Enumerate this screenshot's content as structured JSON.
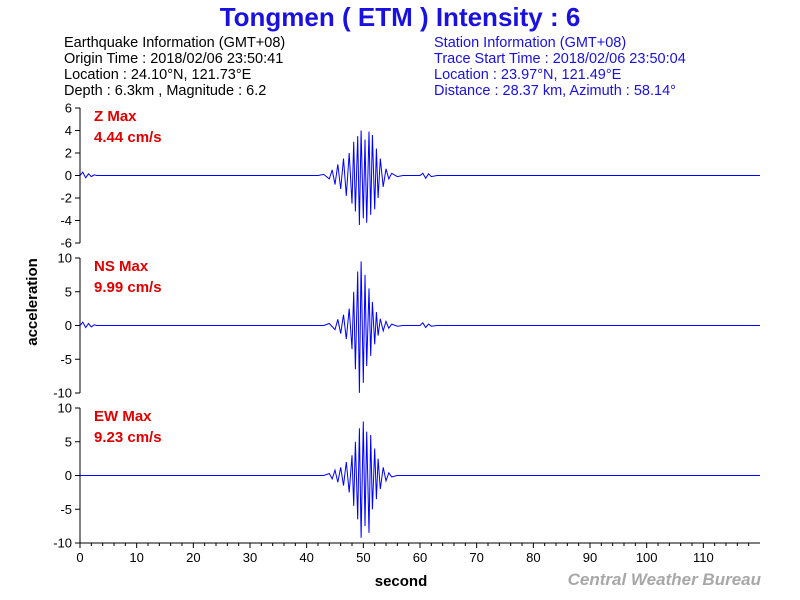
{
  "title": "Tongmen ( ETM ) Intensity : 6",
  "earthquake_info": {
    "heading": "Earthquake Information  (GMT+08)",
    "origin_time": "Origin Time : 2018/02/06 23:50:41",
    "location": "Location : 24.10°N, 121.73°E",
    "depth_magnitude": "Depth : 6.3km , Magnitude : 6.2"
  },
  "station_info": {
    "heading": "Station Information  (GMT+08)",
    "trace_start": "Trace Start Time : 2018/02/06 23:50:04",
    "location": "Location : 23.97°N, 121.49°E",
    "distance_azimuth": "Distance : 28.37 km, Azimuth : 58.14°"
  },
  "credit": "Central Weather Bureau",
  "colors": {
    "title": "#1a10e0",
    "station_text": "#1a10e0",
    "trace": "#0000ff",
    "max_label": "#e00000",
    "credit": "#a8a8a8"
  },
  "chart_data": [
    {
      "type": "line",
      "panel": "Z",
      "max_label": "Z Max",
      "max_value": "4.44 cm/s",
      "xlabel": "second",
      "ylabel": "acceleration",
      "xlim": [
        0,
        120
      ],
      "ylim": [
        -6,
        6
      ],
      "y_ticks": [
        6,
        4,
        2,
        0,
        -2,
        -4,
        -6
      ],
      "x_ticks": [
        0,
        10,
        20,
        30,
        40,
        50,
        60,
        70,
        80,
        90,
        100,
        110
      ],
      "series": [
        {
          "x": [
            0,
            0.5,
            1,
            1.5,
            2,
            2.5,
            3,
            42,
            43,
            44,
            44.5,
            45,
            45.5,
            46,
            46.5,
            47,
            47.5,
            48,
            48.3,
            48.6,
            49,
            49.3,
            49.6,
            50,
            50.3,
            50.6,
            51,
            51.3,
            51.6,
            52,
            52.3,
            52.6,
            53,
            53.5,
            54,
            54.5,
            55,
            56,
            57,
            60,
            60.5,
            61,
            61.5,
            62,
            63,
            120
          ],
          "y": [
            0,
            0.3,
            -0.2,
            0.15,
            -0.1,
            0.05,
            0,
            0,
            0.1,
            -0.3,
            0.5,
            -0.8,
            1.0,
            -1.2,
            1.5,
            -1.8,
            2.0,
            -2.5,
            3.0,
            -3.2,
            3.5,
            -4.4,
            4.0,
            -3.8,
            3.2,
            -4.2,
            3.9,
            -3.5,
            3.6,
            -3.0,
            2.4,
            -2.0,
            1.5,
            -1.0,
            0.6,
            -0.3,
            0.2,
            -0.1,
            0,
            0,
            0.2,
            -0.25,
            0.15,
            -0.1,
            0,
            0
          ]
        }
      ]
    },
    {
      "type": "line",
      "panel": "NS",
      "max_label": "NS Max",
      "max_value": "9.99 cm/s",
      "xlabel": "second",
      "ylabel": "acceleration",
      "xlim": [
        0,
        120
      ],
      "ylim": [
        -10,
        10
      ],
      "y_ticks": [
        10,
        5,
        0,
        -5,
        -10
      ],
      "x_ticks": [
        0,
        10,
        20,
        30,
        40,
        50,
        60,
        70,
        80,
        90,
        100,
        110
      ],
      "series": [
        {
          "x": [
            0,
            0.5,
            1,
            1.5,
            2,
            2.5,
            3,
            43,
            44,
            45,
            45.5,
            46,
            46.5,
            47,
            47.5,
            48,
            48.3,
            48.6,
            49,
            49.3,
            49.6,
            50,
            50.3,
            50.6,
            51,
            51.3,
            51.6,
            52,
            52.3,
            52.6,
            53,
            53.5,
            54,
            54.5,
            55,
            56,
            57,
            60,
            60.5,
            61,
            61.5,
            62,
            63,
            120
          ],
          "y": [
            0,
            0.5,
            -0.3,
            0.3,
            -0.2,
            0.1,
            0,
            0,
            0.3,
            -0.6,
            0.9,
            -1.2,
            1.6,
            -2.0,
            2.5,
            -3.5,
            5.0,
            -6.5,
            8.0,
            -9.99,
            9.5,
            -8.5,
            7.5,
            -6.0,
            5.5,
            -4.5,
            3.5,
            -2.8,
            2.0,
            -1.5,
            1.0,
            -0.8,
            0.6,
            -0.4,
            0.2,
            -0.1,
            0,
            0,
            0.4,
            -0.3,
            0.2,
            -0.1,
            0,
            0
          ]
        }
      ]
    },
    {
      "type": "line",
      "panel": "EW",
      "max_label": "EW Max",
      "max_value": "9.23 cm/s",
      "xlabel": "second",
      "ylabel": "acceleration",
      "xlim": [
        0,
        120
      ],
      "ylim": [
        -10,
        10
      ],
      "y_ticks": [
        10,
        5,
        0,
        -5,
        -10
      ],
      "x_ticks": [
        0,
        10,
        20,
        30,
        40,
        50,
        60,
        70,
        80,
        90,
        100,
        110
      ],
      "series": [
        {
          "x": [
            0,
            43,
            44,
            44.5,
            45,
            45.5,
            46,
            46.5,
            47,
            47.5,
            48,
            48.3,
            48.6,
            49,
            49.3,
            49.6,
            50,
            50.3,
            50.6,
            51,
            51.3,
            51.6,
            52,
            52.3,
            52.6,
            53,
            53.5,
            54,
            54.5,
            55,
            56,
            120
          ],
          "y": [
            0,
            0,
            0.3,
            -0.5,
            0.8,
            -1.0,
            1.2,
            -1.5,
            2.0,
            -2.5,
            3.0,
            -4.5,
            5.0,
            -6.5,
            7.0,
            -9.23,
            8.0,
            -7.5,
            6.5,
            -8.5,
            6.0,
            -5.0,
            4.0,
            -3.5,
            2.5,
            -2.0,
            1.2,
            -0.8,
            0.4,
            -0.2,
            0,
            0
          ]
        }
      ]
    }
  ]
}
